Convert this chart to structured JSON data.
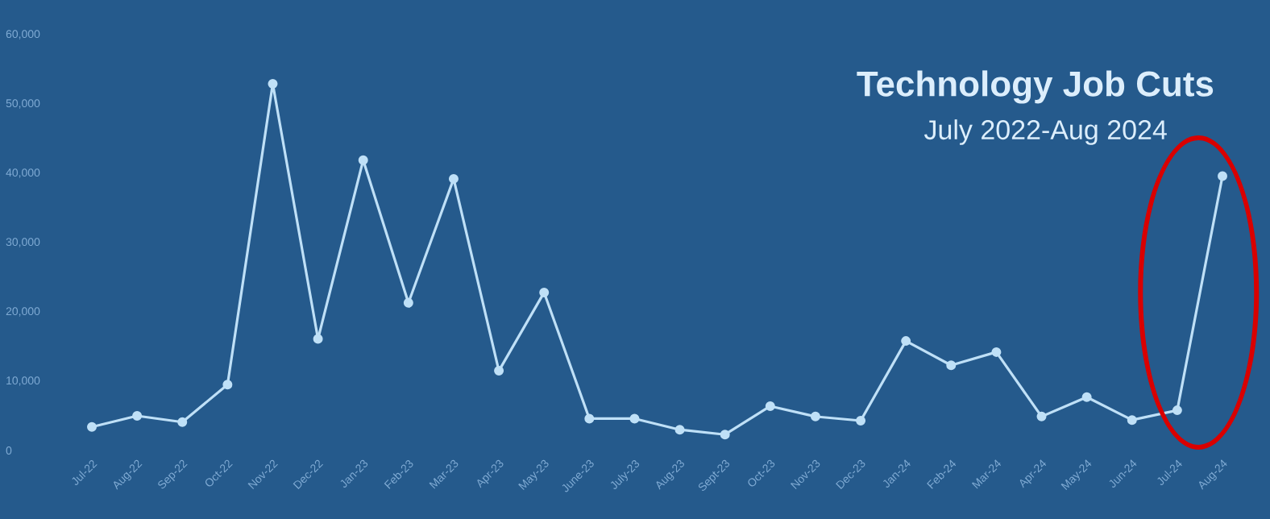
{
  "chart_data": {
    "type": "line",
    "title": "Technology Job Cuts",
    "subtitle": "July 2022-Aug 2024",
    "categories": [
      "Jul-22",
      "Aug-22",
      "Sep-22",
      "Oct-22",
      "Nov-22",
      "Dec-22",
      "Jan-23",
      "Feb-23",
      "Mar-23",
      "Apr-23",
      "May-23",
      "June-23",
      "July-23",
      "Aug-23",
      "Sept-23",
      "Oct-23",
      "Nov-23",
      "Dec-23",
      "Jan-24",
      "Feb-24",
      "Mar-24",
      "Apr-24",
      "May-24",
      "Jun-24",
      "Jul-24",
      "Aug-24"
    ],
    "values": [
      3400,
      5000,
      4100,
      9500,
      52900,
      16100,
      41900,
      21300,
      39200,
      11500,
      22800,
      4600,
      4600,
      3000,
      2300,
      6400,
      4900,
      4300,
      15800,
      12300,
      14200,
      4900,
      7700,
      4400,
      5800,
      39600
    ],
    "color": "#bfe0f7",
    "marker": "circle",
    "line_style": "solid",
    "grid": false,
    "ylim": [
      0,
      60000
    ],
    "yticks": [
      0,
      {
        "value": 10000,
        "label": "10,000"
      },
      {
        "value": 20000,
        "label": "20,000"
      },
      {
        "value": 30000,
        "label": "30,000"
      },
      {
        "value": 40000,
        "label": "40,000"
      },
      {
        "value": 50000,
        "label": "50,000"
      },
      {
        "value": 60000,
        "label": "60,000"
      }
    ]
  }
}
